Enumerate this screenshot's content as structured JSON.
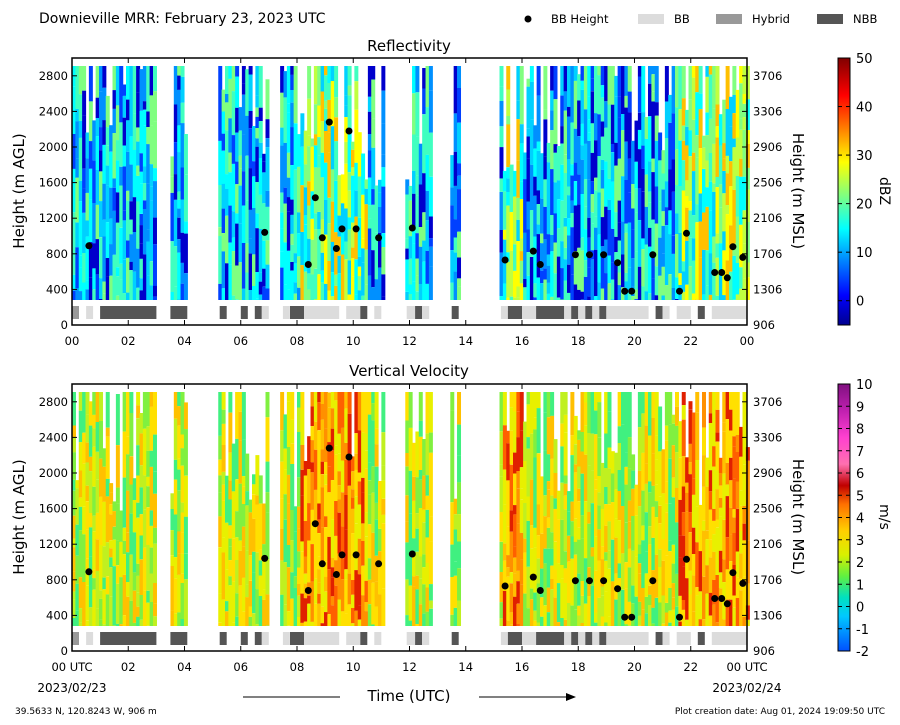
{
  "title": "Downieville MRR:  February 23, 2023 UTC",
  "legend": [
    {
      "label": "BB Height",
      "kind": "dot",
      "color": "#000000"
    },
    {
      "label": "BB",
      "kind": "box",
      "color": "#dcdcdc"
    },
    {
      "label": "Hybrid",
      "kind": "box",
      "color": "#999999"
    },
    {
      "label": "NBB",
      "kind": "box",
      "color": "#555555"
    }
  ],
  "x_axis": {
    "label": "Time (UTC)",
    "range_hours": [
      0,
      24
    ],
    "ticks_top": [
      "00",
      "02",
      "04",
      "06",
      "08",
      "10",
      "12",
      "14",
      "16",
      "18",
      "20",
      "22",
      "00"
    ],
    "ticks_bottom": [
      "00 UTC",
      "02",
      "04",
      "06",
      "08",
      "10",
      "12",
      "14",
      "16",
      "18",
      "20",
      "22",
      "00 UTC"
    ],
    "start_date": "2023/02/23",
    "end_date": "2023/02/24"
  },
  "footer": {
    "location": "39.5633 N, 120.8243 W, 906 m",
    "creation": "Plot creation date: Aug 01, 2024 19:09:50 UTC"
  },
  "chart_data": [
    {
      "type": "heatmap",
      "title": "Reflectivity",
      "ylabel": "Height (m AGL)",
      "ylabel_right": "Height (m MSL)",
      "ylim": [
        0,
        3000
      ],
      "yticks": [
        "0",
        "400",
        "800",
        "1200",
        "1600",
        "2000",
        "2400",
        "2800"
      ],
      "yticks_right": [
        "906",
        "1306",
        "1706",
        "2106",
        "2506",
        "2906",
        "3306",
        "3706"
      ],
      "colorbar": {
        "label": "dBZ",
        "range": [
          -5,
          50
        ],
        "ticks": [
          "0",
          "10",
          "20",
          "30",
          "40",
          "50"
        ],
        "colormap": "jet"
      }
    },
    {
      "type": "heatmap",
      "title": "Vertical Velocity",
      "ylabel": "Height (m AGL)",
      "ylabel_right": "Height (m MSL)",
      "ylim": [
        0,
        3000
      ],
      "yticks": [
        "0",
        "400",
        "800",
        "1200",
        "1600",
        "2000",
        "2400",
        "2800"
      ],
      "yticks_right": [
        "906",
        "1306",
        "1706",
        "2106",
        "2506",
        "2906",
        "3306",
        "3706"
      ],
      "colorbar": {
        "label": "m/s",
        "range": [
          -2,
          10
        ],
        "ticks": [
          "-2",
          "-1",
          "0",
          "1",
          "2",
          "3",
          "4",
          "5",
          "6",
          "7",
          "8",
          "9",
          "10"
        ],
        "colormap": "velocity"
      }
    }
  ],
  "bb_heights": [
    {
      "t": 0.6,
      "h": 890
    },
    {
      "t": 6.85,
      "h": 1040
    },
    {
      "t": 8.4,
      "h": 680
    },
    {
      "t": 8.65,
      "h": 1430
    },
    {
      "t": 8.9,
      "h": 980
    },
    {
      "t": 9.15,
      "h": 2280
    },
    {
      "t": 9.4,
      "h": 860
    },
    {
      "t": 9.6,
      "h": 1080
    },
    {
      "t": 9.85,
      "h": 2180
    },
    {
      "t": 10.1,
      "h": 1080
    },
    {
      "t": 10.9,
      "h": 980
    },
    {
      "t": 12.1,
      "h": 1090
    },
    {
      "t": 15.4,
      "h": 730
    },
    {
      "t": 16.4,
      "h": 830
    },
    {
      "t": 16.65,
      "h": 680
    },
    {
      "t": 17.9,
      "h": 790
    },
    {
      "t": 18.4,
      "h": 790
    },
    {
      "t": 18.9,
      "h": 790
    },
    {
      "t": 19.4,
      "h": 700
    },
    {
      "t": 19.65,
      "h": 380
    },
    {
      "t": 19.9,
      "h": 380
    },
    {
      "t": 20.65,
      "h": 790
    },
    {
      "t": 21.6,
      "h": 380
    },
    {
      "t": 21.85,
      "h": 1030
    },
    {
      "t": 22.85,
      "h": 590
    },
    {
      "t": 23.1,
      "h": 590
    },
    {
      "t": 23.3,
      "h": 530
    },
    {
      "t": 23.5,
      "h": 880
    },
    {
      "t": 23.85,
      "h": 760
    }
  ],
  "bb_classes": [
    {
      "t0": 0.0,
      "t1": 0.25,
      "c": "Hybrid"
    },
    {
      "t0": 0.5,
      "t1": 0.75,
      "c": "BB"
    },
    {
      "t0": 1.0,
      "t1": 3.0,
      "c": "NBB"
    },
    {
      "t0": 3.5,
      "t1": 4.1,
      "c": "NBB"
    },
    {
      "t0": 5.25,
      "t1": 5.5,
      "c": "NBB"
    },
    {
      "t0": 6.0,
      "t1": 6.25,
      "c": "NBB"
    },
    {
      "t0": 6.5,
      "t1": 6.75,
      "c": "NBB"
    },
    {
      "t0": 6.75,
      "t1": 7.0,
      "c": "BB"
    },
    {
      "t0": 7.5,
      "t1": 7.75,
      "c": "BB"
    },
    {
      "t0": 7.75,
      "t1": 8.25,
      "c": "NBB"
    },
    {
      "t0": 8.25,
      "t1": 9.5,
      "c": "BB"
    },
    {
      "t0": 9.75,
      "t1": 10.25,
      "c": "BB"
    },
    {
      "t0": 10.25,
      "t1": 10.5,
      "c": "NBB"
    },
    {
      "t0": 10.75,
      "t1": 11.0,
      "c": "BB"
    },
    {
      "t0": 11.9,
      "t1": 12.2,
      "c": "BB"
    },
    {
      "t0": 12.2,
      "t1": 12.45,
      "c": "NBB"
    },
    {
      "t0": 12.45,
      "t1": 12.7,
      "c": "BB"
    },
    {
      "t0": 13.5,
      "t1": 13.75,
      "c": "NBB"
    },
    {
      "t0": 15.25,
      "t1": 15.5,
      "c": "BB"
    },
    {
      "t0": 15.5,
      "t1": 16.0,
      "c": "NBB"
    },
    {
      "t0": 16.0,
      "t1": 16.5,
      "c": "BB"
    },
    {
      "t0": 16.5,
      "t1": 17.5,
      "c": "NBB"
    },
    {
      "t0": 17.5,
      "t1": 17.75,
      "c": "BB"
    },
    {
      "t0": 17.75,
      "t1": 18.0,
      "c": "NBB"
    },
    {
      "t0": 18.0,
      "t1": 18.25,
      "c": "BB"
    },
    {
      "t0": 18.25,
      "t1": 18.5,
      "c": "NBB"
    },
    {
      "t0": 18.5,
      "t1": 18.75,
      "c": "BB"
    },
    {
      "t0": 18.75,
      "t1": 19.0,
      "c": "NBB"
    },
    {
      "t0": 19.0,
      "t1": 20.5,
      "c": "BB"
    },
    {
      "t0": 20.75,
      "t1": 21.0,
      "c": "NBB"
    },
    {
      "t0": 21.0,
      "t1": 21.25,
      "c": "BB"
    },
    {
      "t0": 21.5,
      "t1": 22.0,
      "c": "BB"
    },
    {
      "t0": 22.25,
      "t1": 22.5,
      "c": "NBB"
    },
    {
      "t0": 22.75,
      "t1": 24.0,
      "c": "BB"
    }
  ],
  "echo_periods": [
    {
      "t0": 0.0,
      "t1": 3.0
    },
    {
      "t0": 3.5,
      "t1": 4.1
    },
    {
      "t0": 5.2,
      "t1": 7.0
    },
    {
      "t0": 7.4,
      "t1": 11.0
    },
    {
      "t0": 11.85,
      "t1": 12.75
    },
    {
      "t0": 13.45,
      "t1": 13.8
    },
    {
      "t0": 15.2,
      "t1": 24.0
    }
  ]
}
